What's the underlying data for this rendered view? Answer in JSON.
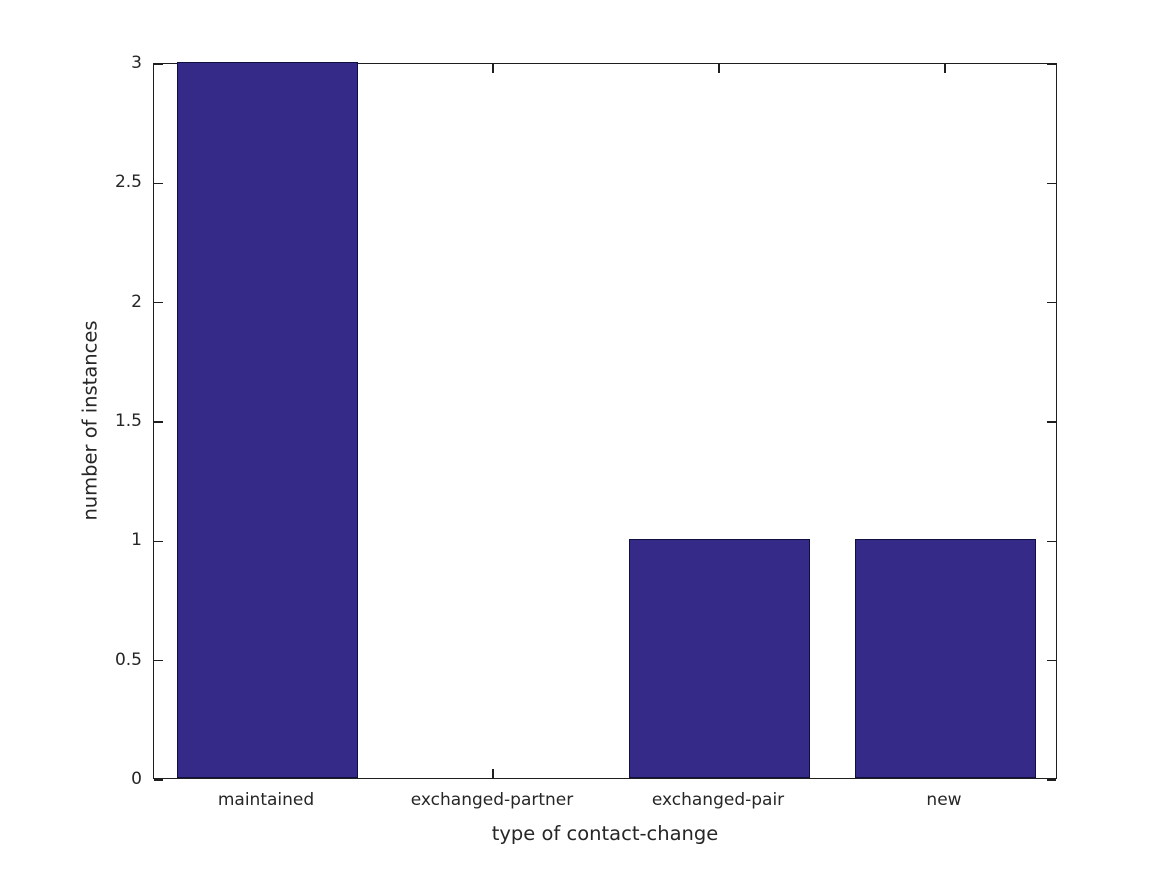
{
  "figure": {
    "background": "#ffffff"
  },
  "chart_data": {
    "type": "bar",
    "title": "",
    "xlabel": "type of contact-change",
    "ylabel": "number of instances",
    "categories": [
      "maintained",
      "exchanged-partner",
      "exchanged-pair",
      "new"
    ],
    "values": [
      3,
      0,
      1,
      1
    ],
    "ylim": [
      0,
      3
    ],
    "yticks": [
      0,
      0.5,
      1,
      1.5,
      2,
      2.5,
      3
    ],
    "ytick_labels": [
      "0",
      "0.5",
      "1",
      "1.5",
      "2",
      "2.5",
      "3"
    ],
    "grid": false,
    "legend": "none",
    "bar_color": "#352A87",
    "bar_edge_color": "#101040",
    "axis_color": "#1f1f1f",
    "text_color": "#262626"
  }
}
